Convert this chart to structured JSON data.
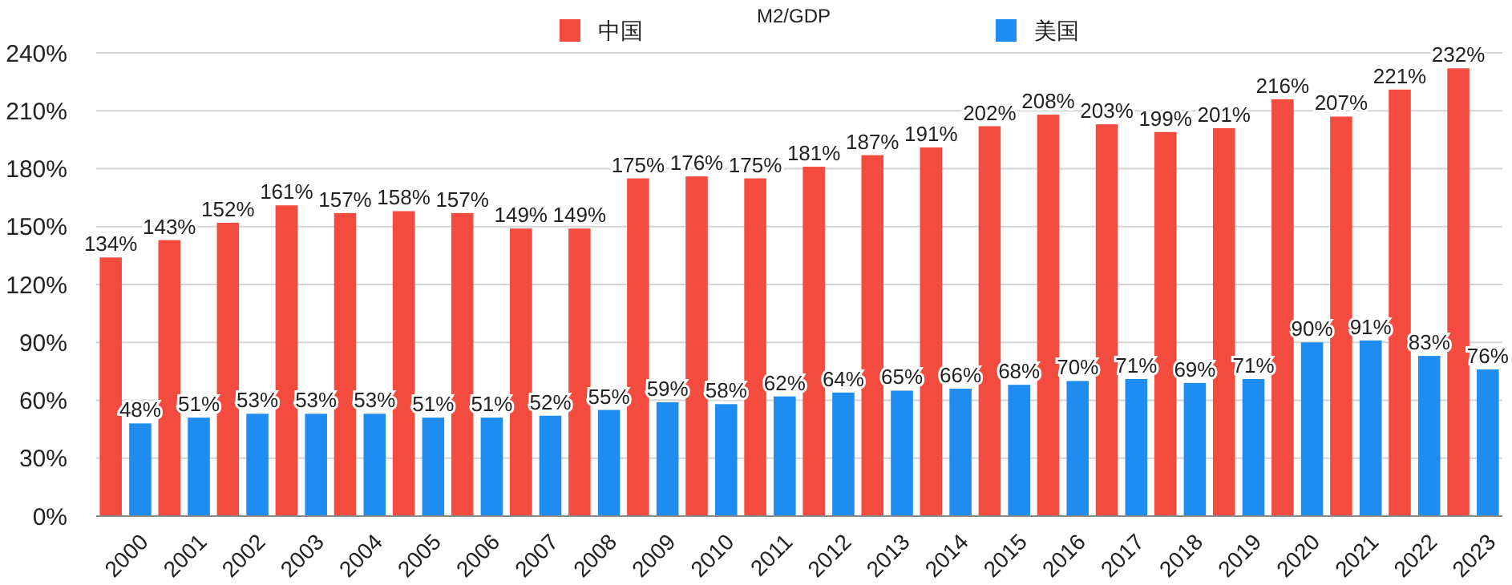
{
  "chart_data": {
    "type": "bar",
    "title": "M2/GDP",
    "categories": [
      "2000",
      "2001",
      "2002",
      "2003",
      "2004",
      "2005",
      "2006",
      "2007",
      "2008",
      "2009",
      "2010",
      "2011",
      "2012",
      "2013",
      "2014",
      "2015",
      "2016",
      "2017",
      "2018",
      "2019",
      "2020",
      "2021",
      "2022",
      "2023"
    ],
    "series": [
      {
        "name": "中国",
        "color": "#f44b3f",
        "values": [
          134,
          143,
          152,
          161,
          157,
          158,
          157,
          149,
          149,
          175,
          176,
          175,
          181,
          187,
          191,
          202,
          208,
          203,
          199,
          201,
          216,
          207,
          221,
          232
        ],
        "value_labels": [
          "134%",
          "143%",
          "152%",
          "161%",
          "157%",
          "158%",
          "157%",
          "149%",
          "149%",
          "175%",
          "176%",
          "175%",
          "181%",
          "187%",
          "191%",
          "202%",
          "208%",
          "203%",
          "199%",
          "201%",
          "216%",
          "207%",
          "221%",
          "232%"
        ]
      },
      {
        "name": "美国",
        "color": "#1e8cf0",
        "values": [
          48,
          51,
          53,
          53,
          53,
          51,
          51,
          52,
          55,
          59,
          58,
          62,
          64,
          65,
          66,
          68,
          70,
          71,
          69,
          71,
          90,
          91,
          83,
          76
        ],
        "value_labels": [
          "48%",
          "51%",
          "53%",
          "53%",
          "53%",
          "51%",
          "51%",
          "52%",
          "55%",
          "59%",
          "58%",
          "62%",
          "64%",
          "65%",
          "66%",
          "68%",
          "70%",
          "71%",
          "69%",
          "71%",
          "90%",
          "91%",
          "83%",
          "76%"
        ]
      }
    ],
    "ylim": [
      0,
      240
    ],
    "yticks": [
      {
        "value": 0,
        "label": "0%"
      },
      {
        "value": 30,
        "label": "30%"
      },
      {
        "value": 60,
        "label": "60%"
      },
      {
        "value": 90,
        "label": "90%"
      },
      {
        "value": 120,
        "label": "120%"
      },
      {
        "value": 150,
        "label": "150%"
      },
      {
        "value": 180,
        "label": "180%"
      },
      {
        "value": 210,
        "label": "210%"
      },
      {
        "value": 240,
        "label": "240%"
      }
    ],
    "grid": "y",
    "legend": "top"
  }
}
